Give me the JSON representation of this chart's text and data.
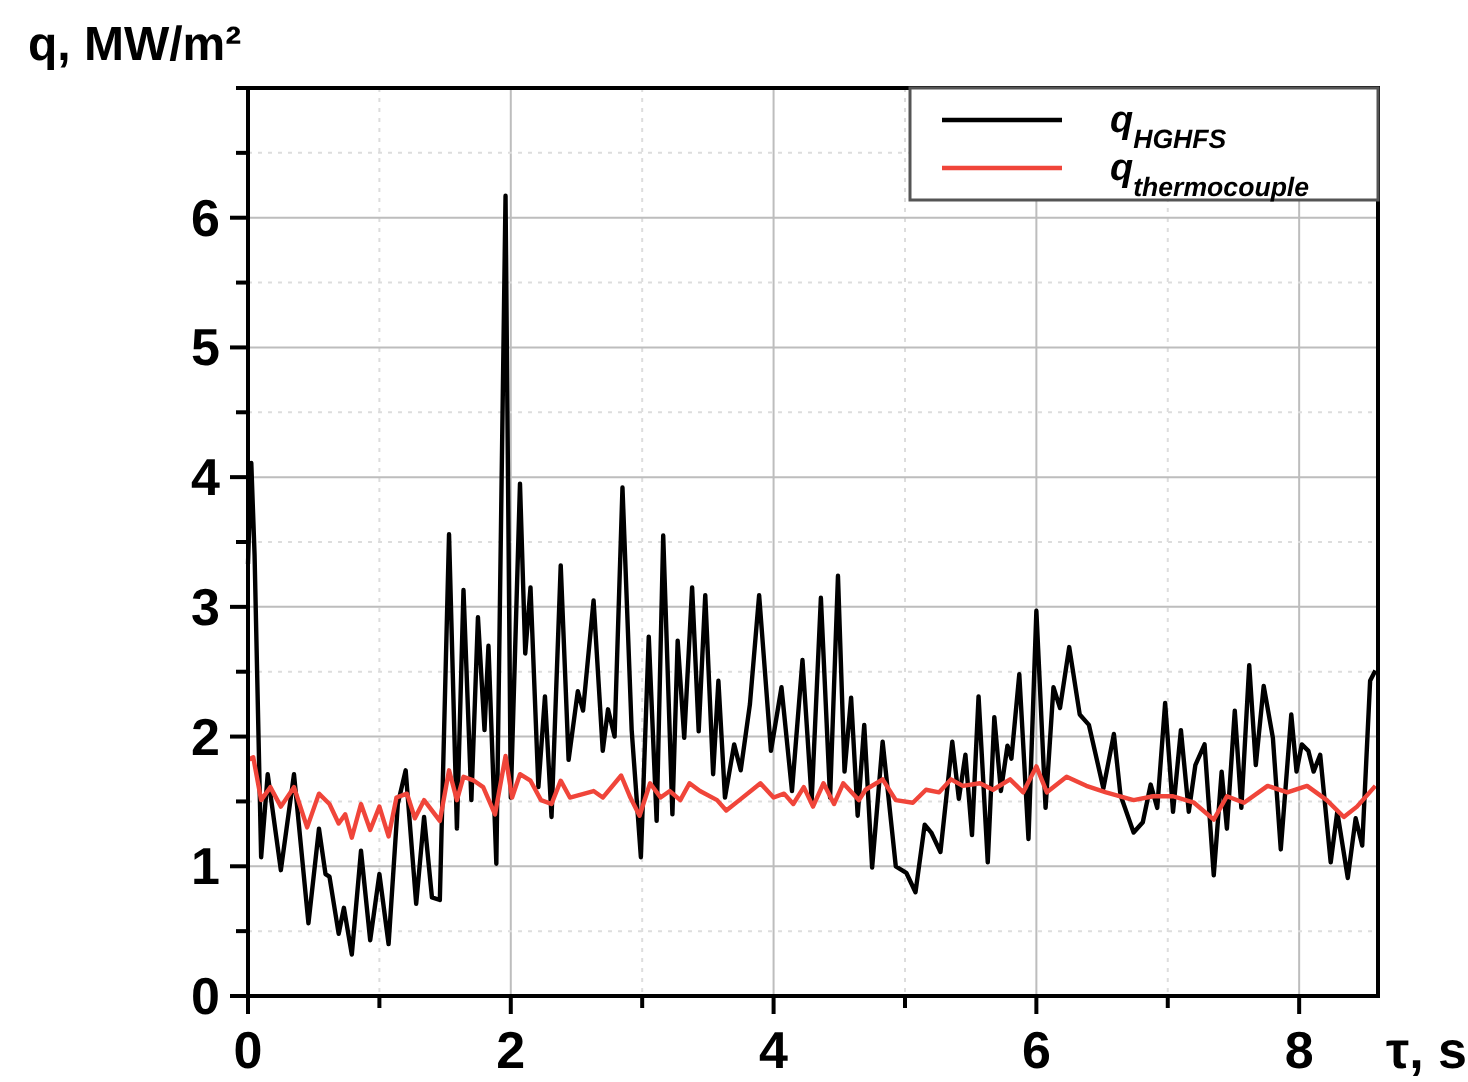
{
  "chart_data": {
    "type": "line",
    "xlabel": "τ, s",
    "ylabel": "q, MW/m²",
    "xlim": [
      0,
      8.6
    ],
    "ylim": [
      0,
      7
    ],
    "xticks": [
      0,
      {
        "value": 1,
        "label": null
      },
      2,
      {
        "value": 3,
        "label": null
      },
      4,
      {
        "value": 5,
        "label": null
      },
      6,
      {
        "value": 7,
        "label": null
      },
      8
    ],
    "yticks": [
      0,
      {
        "value": 0.5,
        "label": null
      },
      1,
      {
        "value": 1.5,
        "label": null
      },
      2,
      {
        "value": 2.5,
        "label": null
      },
      3,
      {
        "value": 3.5,
        "label": null
      },
      4,
      {
        "value": 4.5,
        "label": null
      },
      5,
      {
        "value": 5.5,
        "label": null
      },
      6,
      {
        "value": 6.5,
        "label": null
      },
      {
        "value": 7,
        "label": null
      }
    ],
    "grid": true,
    "legend": "top right",
    "line_style": "solid",
    "marker": "none",
    "series": [
      {
        "name": "q$_{HGHFS}$",
        "color": "#000000",
        "x": [
          0,
          0.025,
          0.05,
          0.1,
          0.15,
          0.25,
          0.35,
          0.46,
          0.54,
          0.59,
          0.62,
          0.69,
          0.73,
          0.79,
          0.86,
          0.93,
          1.0,
          1.07,
          1.14,
          1.2,
          1.28,
          1.34,
          1.4,
          1.46,
          1.53,
          1.59,
          1.64,
          1.7,
          1.75,
          1.8,
          1.83,
          1.89,
          1.96,
          2.0,
          2.07,
          2.11,
          2.15,
          2.21,
          2.26,
          2.31,
          2.38,
          2.44,
          2.51,
          2.55,
          2.63,
          2.7,
          2.74,
          2.79,
          2.85,
          2.92,
          2.99,
          3.05,
          3.11,
          3.16,
          3.23,
          3.27,
          3.32,
          3.38,
          3.43,
          3.48,
          3.54,
          3.58,
          3.63,
          3.7,
          3.75,
          3.82,
          3.89,
          3.98,
          4.06,
          4.14,
          4.22,
          4.29,
          4.36,
          4.43,
          4.49,
          4.54,
          4.59,
          4.64,
          4.69,
          4.75,
          4.83,
          4.93,
          5.01,
          5.08,
          5.15,
          5.2,
          5.27,
          5.36,
          5.41,
          5.46,
          5.51,
          5.56,
          5.63,
          5.68,
          5.73,
          5.78,
          5.81,
          5.87,
          5.94,
          6.0,
          6.07,
          6.13,
          6.18,
          6.25,
          6.33,
          6.4,
          6.51,
          6.59,
          6.64,
          6.74,
          6.81,
          6.87,
          6.92,
          6.98,
          7.04,
          7.1,
          7.16,
          7.21,
          7.28,
          7.35,
          7.41,
          7.45,
          7.51,
          7.56,
          7.62,
          7.67,
          7.73,
          7.8,
          7.86,
          7.94,
          7.98,
          8.02,
          8.07,
          8.11,
          8.16,
          8.24,
          8.29,
          8.37,
          8.43,
          8.48,
          8.54,
          8.58
        ],
        "values": [
          3.33,
          4.11,
          3.4,
          1.07,
          1.71,
          0.97,
          1.71,
          0.56,
          1.29,
          0.94,
          0.92,
          0.48,
          0.68,
          0.32,
          1.12,
          0.43,
          0.94,
          0.4,
          1.48,
          1.74,
          0.71,
          1.38,
          0.76,
          0.74,
          3.56,
          1.29,
          3.13,
          1.51,
          2.92,
          2.05,
          2.7,
          1.02,
          6.17,
          1.53,
          3.95,
          2.64,
          3.15,
          1.61,
          2.31,
          1.38,
          3.32,
          1.82,
          2.35,
          2.2,
          3.05,
          1.89,
          2.21,
          2.0,
          3.92,
          2.05,
          1.07,
          2.77,
          1.35,
          3.55,
          1.4,
          2.74,
          1.99,
          3.15,
          2.04,
          3.09,
          1.71,
          2.43,
          1.53,
          1.94,
          1.74,
          2.25,
          3.09,
          1.89,
          2.38,
          1.58,
          2.59,
          1.51,
          3.07,
          1.53,
          3.24,
          1.73,
          2.3,
          1.39,
          2.09,
          0.99,
          1.96,
          1.0,
          0.95,
          0.8,
          1.32,
          1.26,
          1.11,
          1.96,
          1.52,
          1.86,
          1.24,
          2.31,
          1.03,
          2.15,
          1.58,
          1.93,
          1.83,
          2.48,
          1.21,
          2.97,
          1.45,
          2.38,
          2.22,
          2.69,
          2.17,
          2.09,
          1.6,
          2.02,
          1.55,
          1.26,
          1.34,
          1.63,
          1.45,
          2.26,
          1.42,
          2.05,
          1.42,
          1.78,
          1.94,
          0.93,
          1.73,
          1.29,
          2.2,
          1.45,
          2.55,
          1.78,
          2.39,
          1.99,
          1.13,
          2.17,
          1.73,
          1.94,
          1.89,
          1.73,
          1.86,
          1.03,
          1.42,
          0.91,
          1.37,
          1.16,
          2.43,
          2.51
        ]
      },
      {
        "name": "q$_{thermocouple}$",
        "color": "#f0453a",
        "x": [
          0,
          0.04,
          0.1,
          0.17,
          0.25,
          0.35,
          0.45,
          0.54,
          0.62,
          0.69,
          0.74,
          0.79,
          0.86,
          0.93,
          1.0,
          1.07,
          1.13,
          1.21,
          1.27,
          1.34,
          1.46,
          1.53,
          1.59,
          1.64,
          1.72,
          1.79,
          1.88,
          1.96,
          2.01,
          2.07,
          2.15,
          2.23,
          2.31,
          2.38,
          2.45,
          2.63,
          2.7,
          2.84,
          2.91,
          2.98,
          3.06,
          3.14,
          3.21,
          3.29,
          3.36,
          3.44,
          3.57,
          3.64,
          3.74,
          3.9,
          4.0,
          4.08,
          4.15,
          4.23,
          4.3,
          4.38,
          4.46,
          4.53,
          4.65,
          4.7,
          4.83,
          4.93,
          5.06,
          5.16,
          5.26,
          5.35,
          5.44,
          5.57,
          5.67,
          5.8,
          5.9,
          6.0,
          6.08,
          6.23,
          6.38,
          6.53,
          6.74,
          6.89,
          7.04,
          7.2,
          7.35,
          7.45,
          7.58,
          7.76,
          7.91,
          8.06,
          8.21,
          8.34,
          8.44,
          8.58
        ],
        "values": [
          1.82,
          1.84,
          1.51,
          1.61,
          1.46,
          1.61,
          1.3,
          1.56,
          1.48,
          1.33,
          1.4,
          1.22,
          1.48,
          1.28,
          1.46,
          1.23,
          1.53,
          1.56,
          1.37,
          1.51,
          1.35,
          1.74,
          1.51,
          1.69,
          1.66,
          1.61,
          1.4,
          1.85,
          1.53,
          1.71,
          1.66,
          1.51,
          1.48,
          1.66,
          1.53,
          1.58,
          1.53,
          1.7,
          1.53,
          1.39,
          1.64,
          1.53,
          1.58,
          1.51,
          1.64,
          1.58,
          1.51,
          1.43,
          1.51,
          1.64,
          1.53,
          1.56,
          1.48,
          1.61,
          1.46,
          1.64,
          1.48,
          1.64,
          1.51,
          1.59,
          1.67,
          1.51,
          1.49,
          1.59,
          1.57,
          1.67,
          1.62,
          1.64,
          1.59,
          1.67,
          1.57,
          1.77,
          1.57,
          1.69,
          1.62,
          1.57,
          1.51,
          1.54,
          1.54,
          1.49,
          1.36,
          1.54,
          1.49,
          1.62,
          1.57,
          1.62,
          1.51,
          1.38,
          1.46,
          1.62
        ]
      }
    ]
  }
}
